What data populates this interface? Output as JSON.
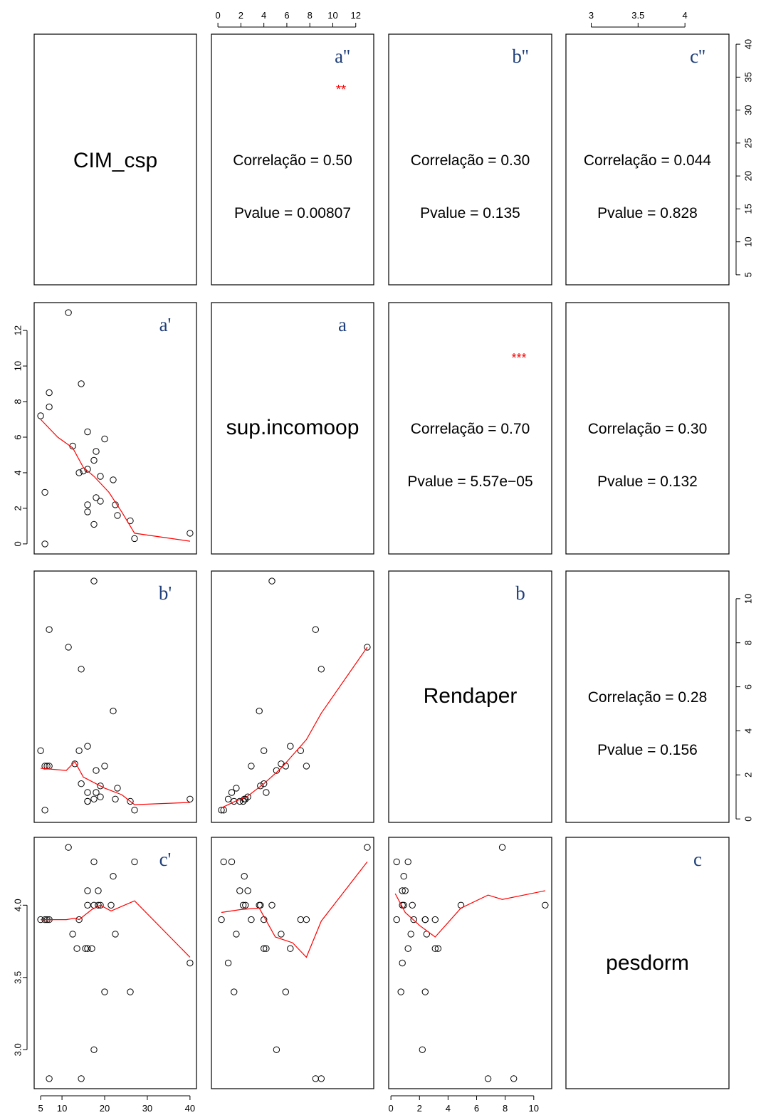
{
  "chart_data": {
    "type": "scatter",
    "variables": [
      "CIM_csp",
      "sup.incomoop",
      "Rendaper",
      "pesdorm"
    ],
    "diagonal_letters": [
      "",
      "a",
      "b",
      "c"
    ],
    "axes": {
      "CIM_csp": {
        "ticks": [
          5,
          10,
          20,
          30,
          40
        ],
        "range": [
          5,
          40
        ]
      },
      "sup.incomoop": {
        "ticks": [
          0,
          2,
          4,
          6,
          8,
          10,
          12
        ],
        "range": [
          0,
          13
        ]
      },
      "Rendaper": {
        "ticks": [
          0,
          2,
          4,
          6,
          8,
          10
        ],
        "range": [
          0.3,
          10.8
        ]
      },
      "pesdorm": {
        "ticks": [
          3.0,
          3.5,
          4.0
        ],
        "range": [
          2.8,
          4.4
        ]
      },
      "CIM_csp_right": {
        "ticks": [
          5,
          10,
          15,
          20,
          25,
          30,
          35,
          40
        ]
      }
    },
    "upper_panels": [
      {
        "row": 0,
        "col": 1,
        "letter": "a''",
        "correlation_label": "Correlação =  0.50",
        "pvalue_label": "Pvalue =  0.00807",
        "stars": "**"
      },
      {
        "row": 0,
        "col": 2,
        "letter": "b''",
        "correlation_label": "Correlação =  0.30",
        "pvalue_label": "Pvalue =  0.135",
        "stars": ""
      },
      {
        "row": 0,
        "col": 3,
        "letter": "c''",
        "correlation_label": "Correlação =  0.044",
        "pvalue_label": "Pvalue =  0.828",
        "stars": ""
      },
      {
        "row": 1,
        "col": 2,
        "letter": "",
        "correlation_label": "Correlação =  0.70",
        "pvalue_label": "Pvalue =  5.57e−05",
        "stars": "***"
      },
      {
        "row": 1,
        "col": 3,
        "letter": "",
        "correlation_label": "Correlação =  0.30",
        "pvalue_label": "Pvalue =  0.132",
        "stars": ""
      },
      {
        "row": 2,
        "col": 3,
        "letter": "",
        "correlation_label": "Correlação =  0.28",
        "pvalue_label": "Pvalue =  0.156",
        "stars": ""
      }
    ],
    "lower_panels": [
      {
        "row": 1,
        "col": 0,
        "letter": "a'",
        "x_var": "CIM_csp",
        "y_var": "sup.incomoop",
        "points": [
          [
            5,
            7.2
          ],
          [
            6,
            0
          ],
          [
            6,
            2.9
          ],
          [
            7,
            7.7
          ],
          [
            7,
            8.5
          ],
          [
            11.5,
            13
          ],
          [
            12.5,
            5.5
          ],
          [
            14,
            4
          ],
          [
            14.5,
            9
          ],
          [
            15,
            4.1
          ],
          [
            16,
            4.2
          ],
          [
            16,
            6.3
          ],
          [
            16,
            2.2
          ],
          [
            16,
            1.8
          ],
          [
            17.5,
            4.7
          ],
          [
            18,
            5.2
          ],
          [
            18,
            2.6
          ],
          [
            17.5,
            1.1
          ],
          [
            19,
            3.8
          ],
          [
            19,
            2.4
          ],
          [
            20,
            5.9
          ],
          [
            22,
            3.6
          ],
          [
            22.5,
            2.2
          ],
          [
            23,
            1.6
          ],
          [
            26,
            1.3
          ],
          [
            27,
            0.3
          ],
          [
            40,
            0.6
          ]
        ],
        "smooth": [
          [
            5,
            7
          ],
          [
            9,
            6
          ],
          [
            12.5,
            5.4
          ],
          [
            15,
            4.3
          ],
          [
            17.5,
            3.8
          ],
          [
            21,
            2.9
          ],
          [
            24,
            1.8
          ],
          [
            27,
            0.6
          ],
          [
            40,
            0.15
          ]
        ]
      },
      {
        "row": 2,
        "col": 0,
        "letter": "b'",
        "x_var": "CIM_csp",
        "y_var": "Rendaper",
        "points": [
          [
            5,
            3.1
          ],
          [
            6,
            2.4
          ],
          [
            6,
            0.4
          ],
          [
            6.5,
            2.4
          ],
          [
            7,
            8.6
          ],
          [
            7,
            2.4
          ],
          [
            11.5,
            7.8
          ],
          [
            13,
            2.5
          ],
          [
            14,
            3.1
          ],
          [
            14.5,
            6.8
          ],
          [
            14.5,
            1.6
          ],
          [
            16,
            1.2
          ],
          [
            16,
            0.8
          ],
          [
            16,
            0.8
          ],
          [
            16,
            3.3
          ],
          [
            17.5,
            0.9
          ],
          [
            17.5,
            10.8
          ],
          [
            18,
            2.2
          ],
          [
            18,
            1.2
          ],
          [
            19,
            1.5
          ],
          [
            19,
            1.0
          ],
          [
            20,
            2.4
          ],
          [
            22,
            4.9
          ],
          [
            22.5,
            0.9
          ],
          [
            23,
            1.4
          ],
          [
            26,
            0.8
          ],
          [
            27,
            0.4
          ],
          [
            40,
            0.9
          ]
        ],
        "smooth": [
          [
            5,
            2.3
          ],
          [
            11,
            2.2
          ],
          [
            13,
            2.6
          ],
          [
            15,
            1.9
          ],
          [
            20,
            1.4
          ],
          [
            24,
            1.1
          ],
          [
            27,
            0.65
          ],
          [
            40,
            0.75
          ]
        ]
      },
      {
        "row": 2,
        "col": 1,
        "letter": "",
        "x_var": "sup.incomoop",
        "y_var": "Rendaper",
        "points": [
          [
            0.3,
            0.4
          ],
          [
            0.5,
            0.4
          ],
          [
            0.9,
            0.9
          ],
          [
            1.2,
            1.2
          ],
          [
            1.4,
            0.8
          ],
          [
            1.6,
            1.4
          ],
          [
            1.9,
            0.8
          ],
          [
            2.2,
            0.8
          ],
          [
            2.3,
            0.9
          ],
          [
            2.4,
            0.9
          ],
          [
            2.6,
            1.0
          ],
          [
            2.9,
            2.4
          ],
          [
            3.6,
            4.9
          ],
          [
            3.7,
            1.5
          ],
          [
            4.0,
            3.1
          ],
          [
            4.0,
            1.6
          ],
          [
            4.2,
            1.2
          ],
          [
            4.7,
            10.8
          ],
          [
            5.1,
            2.2
          ],
          [
            5.5,
            2.5
          ],
          [
            5.9,
            2.4
          ],
          [
            6.3,
            3.3
          ],
          [
            7.2,
            3.1
          ],
          [
            7.7,
            2.4
          ],
          [
            8.5,
            8.6
          ],
          [
            9.0,
            6.8
          ],
          [
            13,
            7.8
          ]
        ],
        "smooth": [
          [
            0.3,
            0.5
          ],
          [
            1.5,
            0.8
          ],
          [
            2.5,
            1.0
          ],
          [
            4,
            1.6
          ],
          [
            5.5,
            2.3
          ],
          [
            7.7,
            3.6
          ],
          [
            9,
            4.8
          ],
          [
            13,
            7.8
          ]
        ]
      },
      {
        "row": 3,
        "col": 0,
        "letter": "c'",
        "x_var": "CIM_csp",
        "y_var": "pesdorm",
        "points": [
          [
            5,
            3.9
          ],
          [
            6,
            3.9
          ],
          [
            6.5,
            3.9
          ],
          [
            7,
            3.9
          ],
          [
            7,
            2.8
          ],
          [
            11.5,
            4.4
          ],
          [
            12.5,
            3.8
          ],
          [
            13.5,
            3.7
          ],
          [
            14,
            3.9
          ],
          [
            14.5,
            2.8
          ],
          [
            15.5,
            3.7
          ],
          [
            16,
            3.7
          ],
          [
            16,
            4.1
          ],
          [
            16,
            4.0
          ],
          [
            17,
            3.7
          ],
          [
            17.5,
            4.0
          ],
          [
            17.5,
            4.3
          ],
          [
            17.5,
            3.0
          ],
          [
            18.5,
            4.0
          ],
          [
            18.5,
            4.1
          ],
          [
            19,
            4.0
          ],
          [
            20,
            3.4
          ],
          [
            21.5,
            4.0
          ],
          [
            22,
            4.2
          ],
          [
            22.5,
            3.8
          ],
          [
            26,
            3.4
          ],
          [
            27,
            4.3
          ],
          [
            40,
            3.6
          ]
        ],
        "smooth": [
          [
            5,
            3.9
          ],
          [
            11,
            3.9
          ],
          [
            13,
            3.91
          ],
          [
            14,
            3.9
          ],
          [
            17,
            3.97
          ],
          [
            19,
            4.0
          ],
          [
            21.5,
            3.96
          ],
          [
            27,
            4.03
          ],
          [
            40,
            3.64
          ]
        ]
      },
      {
        "row": 3,
        "col": 1,
        "letter": "",
        "x_var": "sup.incomoop",
        "y_var": "pesdorm",
        "points": [
          [
            0.3,
            3.9
          ],
          [
            0.5,
            4.3
          ],
          [
            0.9,
            3.6
          ],
          [
            1.2,
            4.3
          ],
          [
            1.4,
            3.4
          ],
          [
            1.6,
            3.8
          ],
          [
            1.9,
            4.1
          ],
          [
            2.2,
            4.0
          ],
          [
            2.3,
            4.2
          ],
          [
            2.4,
            4.0
          ],
          [
            2.6,
            4.1
          ],
          [
            2.9,
            3.9
          ],
          [
            3.6,
            4.0
          ],
          [
            3.7,
            4.0
          ],
          [
            4.0,
            3.7
          ],
          [
            4.0,
            3.9
          ],
          [
            4.2,
            3.7
          ],
          [
            4.7,
            4.0
          ],
          [
            5.1,
            3.0
          ],
          [
            5.5,
            3.8
          ],
          [
            5.9,
            3.4
          ],
          [
            6.3,
            3.7
          ],
          [
            7.2,
            3.9
          ],
          [
            7.7,
            3.9
          ],
          [
            8.5,
            2.8
          ],
          [
            9.0,
            2.8
          ],
          [
            13,
            4.4
          ]
        ],
        "smooth": [
          [
            0.3,
            3.95
          ],
          [
            2,
            3.97
          ],
          [
            3.6,
            3.98
          ],
          [
            5,
            3.78
          ],
          [
            6.5,
            3.74
          ],
          [
            7.7,
            3.64
          ],
          [
            9,
            3.89
          ],
          [
            13,
            4.3
          ]
        ]
      },
      {
        "row": 3,
        "col": 2,
        "letter": "",
        "x_var": "Rendaper",
        "y_var": "pesdorm",
        "points": [
          [
            0.4,
            3.9
          ],
          [
            0.4,
            4.3
          ],
          [
            0.7,
            3.4
          ],
          [
            0.8,
            4.0
          ],
          [
            0.8,
            3.6
          ],
          [
            0.8,
            4.1
          ],
          [
            0.9,
            4.2
          ],
          [
            0.9,
            4.0
          ],
          [
            1.0,
            4.1
          ],
          [
            1.2,
            4.3
          ],
          [
            1.2,
            3.7
          ],
          [
            1.4,
            3.8
          ],
          [
            1.5,
            4.0
          ],
          [
            1.6,
            3.9
          ],
          [
            2.2,
            3.0
          ],
          [
            2.4,
            3.9
          ],
          [
            2.4,
            3.4
          ],
          [
            2.4,
            3.9
          ],
          [
            2.5,
            3.8
          ],
          [
            3.1,
            3.9
          ],
          [
            3.1,
            3.7
          ],
          [
            3.3,
            3.7
          ],
          [
            4.9,
            4.0
          ],
          [
            6.8,
            2.8
          ],
          [
            7.8,
            4.4
          ],
          [
            8.6,
            2.8
          ],
          [
            10.8,
            4.0
          ]
        ],
        "smooth": [
          [
            0.3,
            4.08
          ],
          [
            1,
            3.95
          ],
          [
            2,
            3.86
          ],
          [
            3.1,
            3.78
          ],
          [
            4.9,
            3.98
          ],
          [
            6.8,
            4.07
          ],
          [
            7.8,
            4.04
          ],
          [
            10.8,
            4.1
          ]
        ]
      }
    ]
  }
}
